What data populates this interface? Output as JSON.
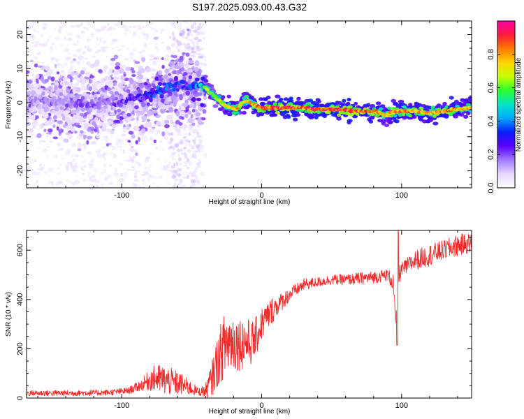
{
  "title": "S197.2025.093.00.43.G32",
  "colors": {
    "snr_line": "#ee2b2b",
    "background": "#ffffff",
    "colormap": [
      "#ffffff",
      "#e6d6ff",
      "#a27bff",
      "#5a00ff",
      "#0a1dff",
      "#00a8ff",
      "#00e6c8",
      "#2bff2b",
      "#c8ff00",
      "#ffd400",
      "#ff7a00",
      "#ff1a3c",
      "#ff00a8"
    ]
  },
  "chart_data": [
    {
      "type": "heatmap",
      "name": "spectrogram",
      "xlabel": "Height of straight line (km)",
      "ylabel": "Frequency (Hz)",
      "xlim": [
        -168,
        150
      ],
      "ylim": [
        -25,
        24
      ],
      "xticks": [
        -100,
        0,
        100
      ],
      "yticks": [
        20,
        10,
        0,
        -10,
        -20
      ],
      "colorbar": {
        "label": "Normalized spectral amplitude",
        "range": [
          0.0,
          1.0
        ],
        "ticks": [
          0.0,
          0.2,
          0.4,
          0.6,
          0.8
        ]
      },
      "ridge": {
        "x": [
          -168,
          -150,
          -130,
          -110,
          -100,
          -90,
          -80,
          -70,
          -60,
          -50,
          -42,
          -38,
          -34,
          -30,
          -26,
          -22,
          -18,
          -14,
          -10,
          -6,
          -2,
          2,
          10,
          20,
          30,
          40,
          50,
          60,
          70,
          80,
          85,
          88,
          92,
          96,
          100,
          110,
          120,
          130,
          140,
          150
        ],
        "y": [
          1,
          0,
          0,
          0,
          0.5,
          1.5,
          2.5,
          4,
          5,
          5,
          5,
          3.5,
          2,
          0.5,
          -1,
          -1.5,
          -2,
          0,
          0.5,
          -0.5,
          -1.5,
          -1.5,
          -1.5,
          -1.5,
          -1.5,
          -2,
          -2,
          -2,
          -2.5,
          -2.5,
          -3,
          -4,
          -3,
          -2.5,
          -2.5,
          -2.5,
          -3,
          -2.5,
          -2,
          -1.5
        ],
        "amplitude": [
          0.2,
          0.25,
          0.25,
          0.25,
          0.3,
          0.35,
          0.4,
          0.45,
          0.4,
          0.4,
          0.6,
          0.7,
          0.65,
          0.7,
          0.75,
          0.8,
          0.85,
          0.75,
          0.8,
          0.85,
          0.9,
          0.9,
          0.95,
          0.95,
          0.9,
          0.95,
          0.98,
          0.95,
          0.9,
          0.9,
          0.8,
          0.75,
          0.85,
          0.9,
          0.9,
          0.85,
          0.85,
          0.9,
          0.85,
          0.8
        ]
      }
    },
    {
      "type": "line",
      "name": "snr",
      "xlabel": "Height of straight line (km)",
      "ylabel": "SNR (10 * v/v)",
      "xlim": [
        -168,
        150
      ],
      "ylim": [
        0,
        680
      ],
      "xticks": [
        -100,
        0,
        100
      ],
      "yticks": [
        0,
        200,
        400,
        600
      ],
      "envelope": {
        "x": [
          -168,
          -140,
          -110,
          -95,
          -85,
          -80,
          -75,
          -68,
          -60,
          -55,
          -45,
          -40,
          -36,
          -32,
          -28,
          -24,
          -20,
          -16,
          -12,
          -8,
          -4,
          0,
          4,
          8,
          12,
          16,
          20,
          25,
          30,
          40,
          50,
          60,
          70,
          80,
          90,
          94,
          96,
          97,
          98,
          100,
          105,
          110,
          120,
          130,
          140,
          150
        ],
        "mean": [
          20,
          20,
          22,
          30,
          55,
          75,
          80,
          70,
          60,
          50,
          25,
          30,
          70,
          140,
          200,
          230,
          230,
          220,
          230,
          220,
          250,
          300,
          330,
          360,
          380,
          400,
          420,
          440,
          460,
          470,
          480,
          480,
          485,
          490,
          500,
          470,
          300,
          470,
          500,
          520,
          540,
          560,
          580,
          600,
          620,
          630
        ],
        "spread": [
          12,
          12,
          12,
          14,
          25,
          45,
          60,
          60,
          50,
          40,
          15,
          30,
          70,
          100,
          130,
          140,
          120,
          110,
          110,
          90,
          80,
          70,
          60,
          55,
          40,
          35,
          30,
          25,
          25,
          20,
          20,
          22,
          25,
          25,
          25,
          40,
          10,
          150,
          40,
          30,
          35,
          40,
          45,
          40,
          45,
          40
        ]
      }
    }
  ]
}
